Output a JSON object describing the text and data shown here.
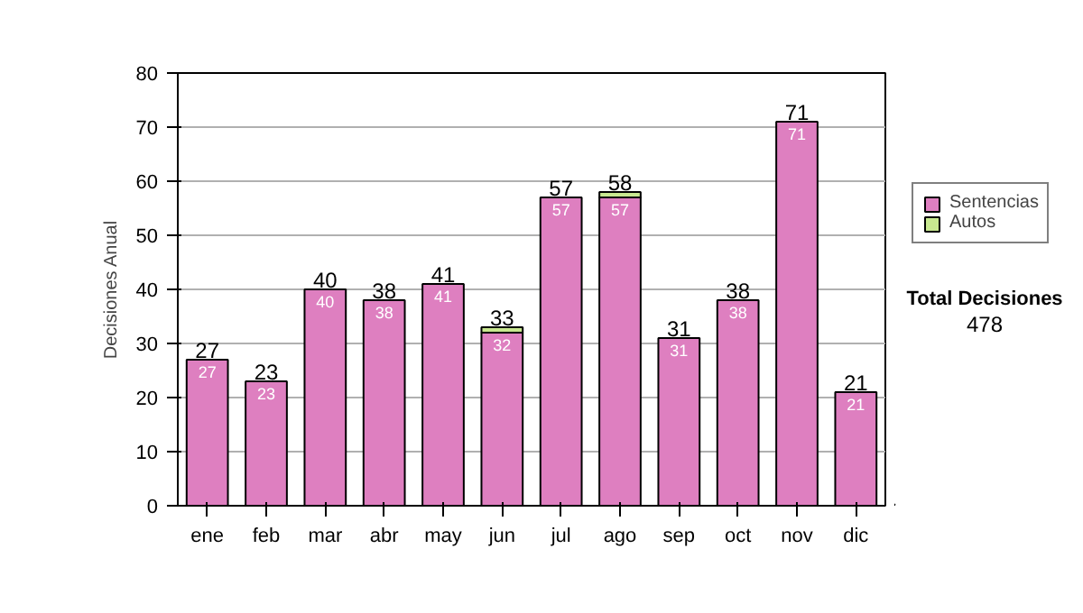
{
  "chart_data": {
    "type": "bar",
    "stacked": true,
    "ylabel": "Decisiones Anual",
    "categories": [
      "ene",
      "feb",
      "mar",
      "abr",
      "may",
      "jun",
      "jul",
      "ago",
      "sep",
      "oct",
      "nov",
      "dic"
    ],
    "series": [
      {
        "name": "Sentencias",
        "color": "#de7fc0",
        "values": [
          27,
          23,
          40,
          38,
          41,
          32,
          57,
          57,
          31,
          38,
          71,
          21
        ],
        "value_labels": [
          "27",
          "23",
          "40",
          "38",
          "41",
          "32",
          "57",
          "57",
          "31",
          "38",
          "71",
          "21"
        ]
      },
      {
        "name": "Autos",
        "color": "#c8e890",
        "values": [
          null,
          null,
          null,
          null,
          null,
          1,
          null,
          1,
          null,
          null,
          null,
          null
        ]
      }
    ],
    "totals": [
      "27",
      "23",
      "40",
      "38",
      "41",
      "33",
      "57",
      "58",
      "31",
      "38",
      "71",
      "21"
    ],
    "ylim": [
      0,
      80
    ],
    "yticks": [
      0,
      10,
      20,
      30,
      40,
      50,
      60,
      70,
      80
    ],
    "grid": "y",
    "legend": "right",
    "annotations": [
      "Total Decisiones",
      "478"
    ]
  }
}
